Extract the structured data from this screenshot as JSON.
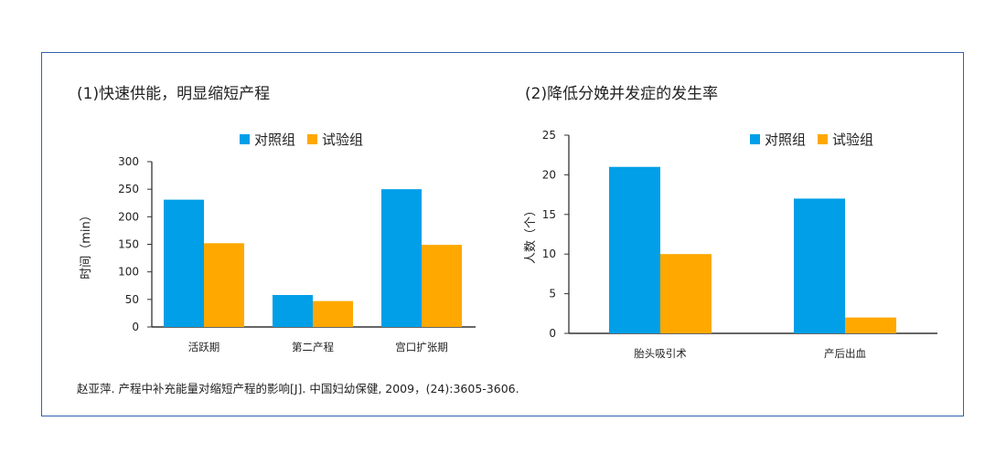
{
  "chart_data": [
    {
      "type": "bar",
      "title": "(1)快速供能，明显缩短产程",
      "categories": [
        "活跃期",
        "第二产程",
        "宫口扩张期"
      ],
      "series": [
        {
          "name": "对照组",
          "color": "#009fe8",
          "values": [
            231,
            58,
            250
          ]
        },
        {
          "name": "试验组",
          "color": "#ffa800",
          "values": [
            152,
            47,
            149
          ]
        }
      ],
      "xlabel": "",
      "ylabel": "时间（min）",
      "ylim": [
        0,
        300
      ],
      "yticks": [
        0,
        50,
        100,
        150,
        200,
        250,
        300
      ],
      "legend": "top-center",
      "grid": false
    },
    {
      "type": "bar",
      "title": "(2)降低分娩并发症的发生率",
      "categories": [
        "胎头吸引术",
        "产后出血"
      ],
      "series": [
        {
          "name": "对照组",
          "color": "#009fe8",
          "values": [
            21,
            17
          ]
        },
        {
          "name": "试验组",
          "color": "#ffa800",
          "values": [
            10,
            2
          ]
        }
      ],
      "xlabel": "",
      "ylabel": "人数（个）",
      "ylim": [
        0,
        25
      ],
      "yticks": [
        0,
        5,
        10,
        15,
        20,
        25
      ],
      "legend": "top-right",
      "grid": false
    }
  ],
  "citation": "赵亚萍. 产程中补充能量对缩短产程的影响[J]. 中国妇幼保健, 2009，(24):3605-3606."
}
